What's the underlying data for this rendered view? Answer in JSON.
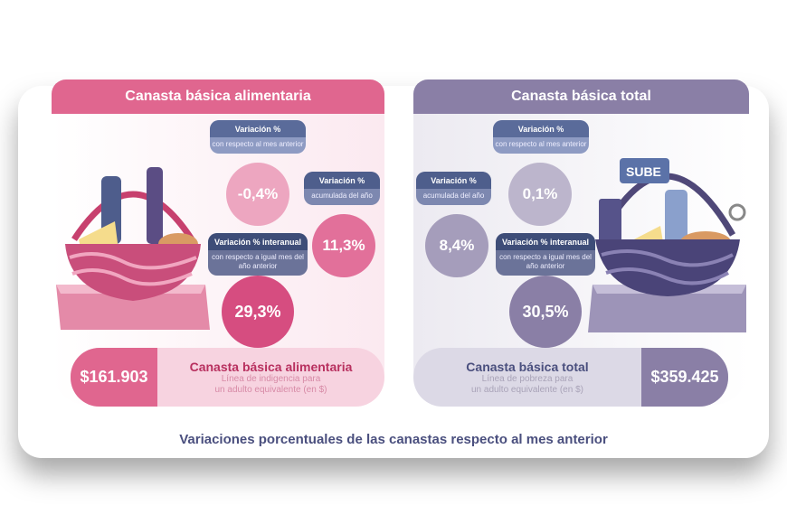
{
  "colors": {
    "pink": "#e0668f",
    "purple": "#8a7fa6",
    "navy": "#3e4d78",
    "box_blue": "#5a6b9a"
  },
  "left": {
    "title": "Canasta básica alimentaria",
    "monthly": {
      "label": "Variación %",
      "sub": "con respecto al mes anterior",
      "value": "-0,4%"
    },
    "ytd": {
      "label": "Variación %",
      "sub": "acumulada del año",
      "value": "11,3%"
    },
    "yoy": {
      "label": "Variación % interanual",
      "sub": "con respecto a igual mes del año anterior",
      "value": "29,3%"
    },
    "price": "$161.903",
    "name": "Canasta básica alimentaria",
    "line1": "Línea de indigencia para",
    "line2": "un adulto equivalente (en $)"
  },
  "right": {
    "title": "Canasta básica total",
    "monthly": {
      "label": "Variación %",
      "sub": "con respecto al mes anterior",
      "value": "0,1%"
    },
    "ytd": {
      "label": "Variación %",
      "sub": "acumulada del año",
      "value": "8,4%"
    },
    "yoy": {
      "label": "Variación % interanual",
      "sub": "con respecto a igual mes del año anterior",
      "value": "30,5%"
    },
    "price": "$359.425",
    "name": "Canasta básica total",
    "line1": "Línea de pobreza para",
    "line2": "un adulto equivalente (en $)",
    "card_text": "SUBE"
  },
  "footer": "Variaciones porcentuales de las canastas respecto al mes anterior"
}
